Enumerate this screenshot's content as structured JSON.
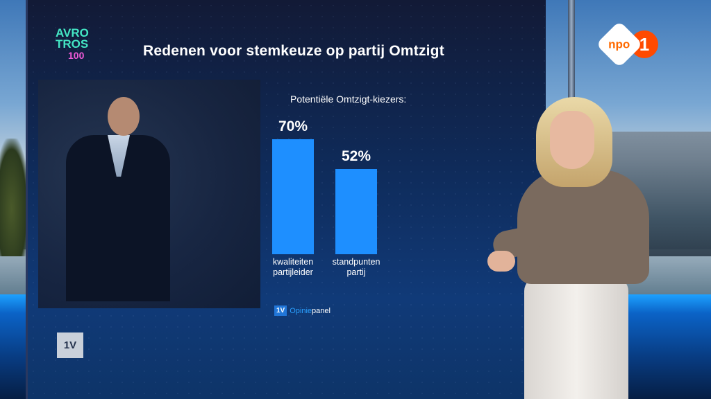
{
  "graphic": {
    "title": "Redenen voor stemkeuze op partij Omtzigt",
    "subtitle": "Potentiële Omtzigt-kiezers:",
    "source": {
      "badge": "1V",
      "word_part1": "Opinie",
      "word_part2": "panel"
    },
    "corner_badge": "1V"
  },
  "broadcaster_logo": {
    "line1": "AVRO",
    "line2": "TROS",
    "line3": "100"
  },
  "channel_logo": {
    "text": "npo",
    "number": "1"
  },
  "colors": {
    "bar": "#1e8fff",
    "title_text": "#ffffff",
    "npo_orange": "#ff4a00"
  },
  "chart_data": {
    "type": "bar",
    "title": "Redenen voor stemkeuze op partij Omtzigt",
    "subtitle": "Potentiële Omtzigt-kiezers:",
    "categories": [
      "kwaliteiten\npartijleider",
      "standpunten\npartij"
    ],
    "values": [
      70,
      52
    ],
    "value_labels": [
      "70%",
      "52%"
    ],
    "unit": "%",
    "ylim": [
      0,
      100
    ],
    "grid": false,
    "legend": "none"
  }
}
